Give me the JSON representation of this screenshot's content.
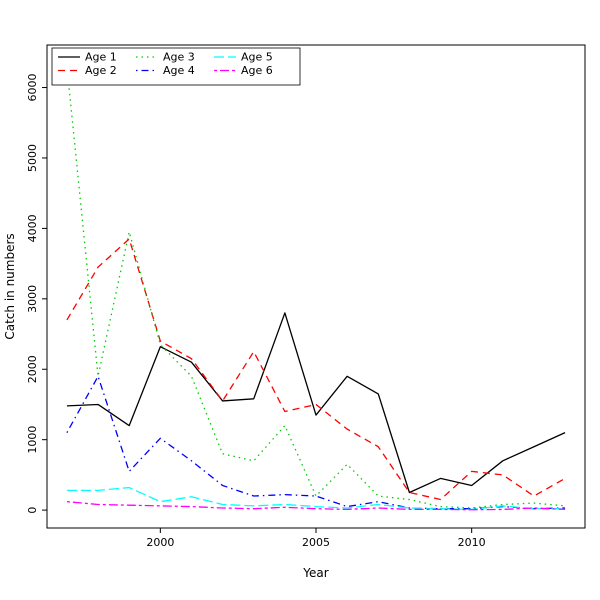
{
  "figure": {
    "background": "#ffffff",
    "axis_color": "#000000"
  },
  "chart_data": {
    "type": "line",
    "title": "",
    "xlabel": "Year",
    "ylabel": "Catch in numbers",
    "x": [
      1997,
      1998,
      1999,
      2000,
      2001,
      2002,
      2003,
      2004,
      2005,
      2006,
      2007,
      2008,
      2009,
      2010,
      2011,
      2012,
      2013
    ],
    "xlim": [
      1997,
      2013
    ],
    "ylim": [
      0,
      6350
    ],
    "xticks": [
      2000,
      2005,
      2010
    ],
    "yticks": [
      0,
      1000,
      2000,
      3000,
      4000,
      5000,
      6000
    ],
    "grid": false,
    "legend_position": "top-left",
    "legend_columns": 3,
    "legend_order_note": "items fill column-wise: col1 Age1/Age2, col2 Age3/Age4, col3 Age5/Age6",
    "series": [
      {
        "name": "Age 1",
        "color": "#000000",
        "dash": "solid",
        "values": [
          1480,
          1500,
          1200,
          2320,
          2100,
          1550,
          1580,
          2800,
          1350,
          1900,
          1650,
          250,
          450,
          350,
          700,
          900,
          1100
        ]
      },
      {
        "name": "Age 2",
        "color": "#FF0000",
        "dash": "dashed",
        "values": [
          2700,
          3450,
          3850,
          2400,
          2150,
          1550,
          2250,
          1400,
          1500,
          1150,
          900,
          250,
          150,
          550,
          500,
          200,
          450
        ]
      },
      {
        "name": "Age 3",
        "color": "#00CD00",
        "dash": "dotted",
        "values": [
          6300,
          1900,
          3950,
          2350,
          1900,
          800,
          700,
          1200,
          200,
          650,
          200,
          150,
          50,
          30,
          80,
          100,
          60
        ]
      },
      {
        "name": "Age 4",
        "color": "#0000FF",
        "dash": "dotdash",
        "values": [
          1100,
          1900,
          550,
          1020,
          700,
          350,
          200,
          220,
          200,
          50,
          120,
          30,
          20,
          20,
          50,
          20,
          30
        ]
      },
      {
        "name": "Age 5",
        "color": "#00FFFF",
        "dash": "longdash",
        "values": [
          280,
          280,
          320,
          120,
          190,
          80,
          60,
          80,
          50,
          30,
          80,
          30,
          20,
          10,
          60,
          20,
          20
        ]
      },
      {
        "name": "Age 6",
        "color": "#FF00FF",
        "dash": "twodash",
        "values": [
          120,
          80,
          70,
          60,
          50,
          30,
          20,
          40,
          20,
          10,
          30,
          10,
          10,
          5,
          10,
          30,
          10
        ]
      }
    ]
  }
}
